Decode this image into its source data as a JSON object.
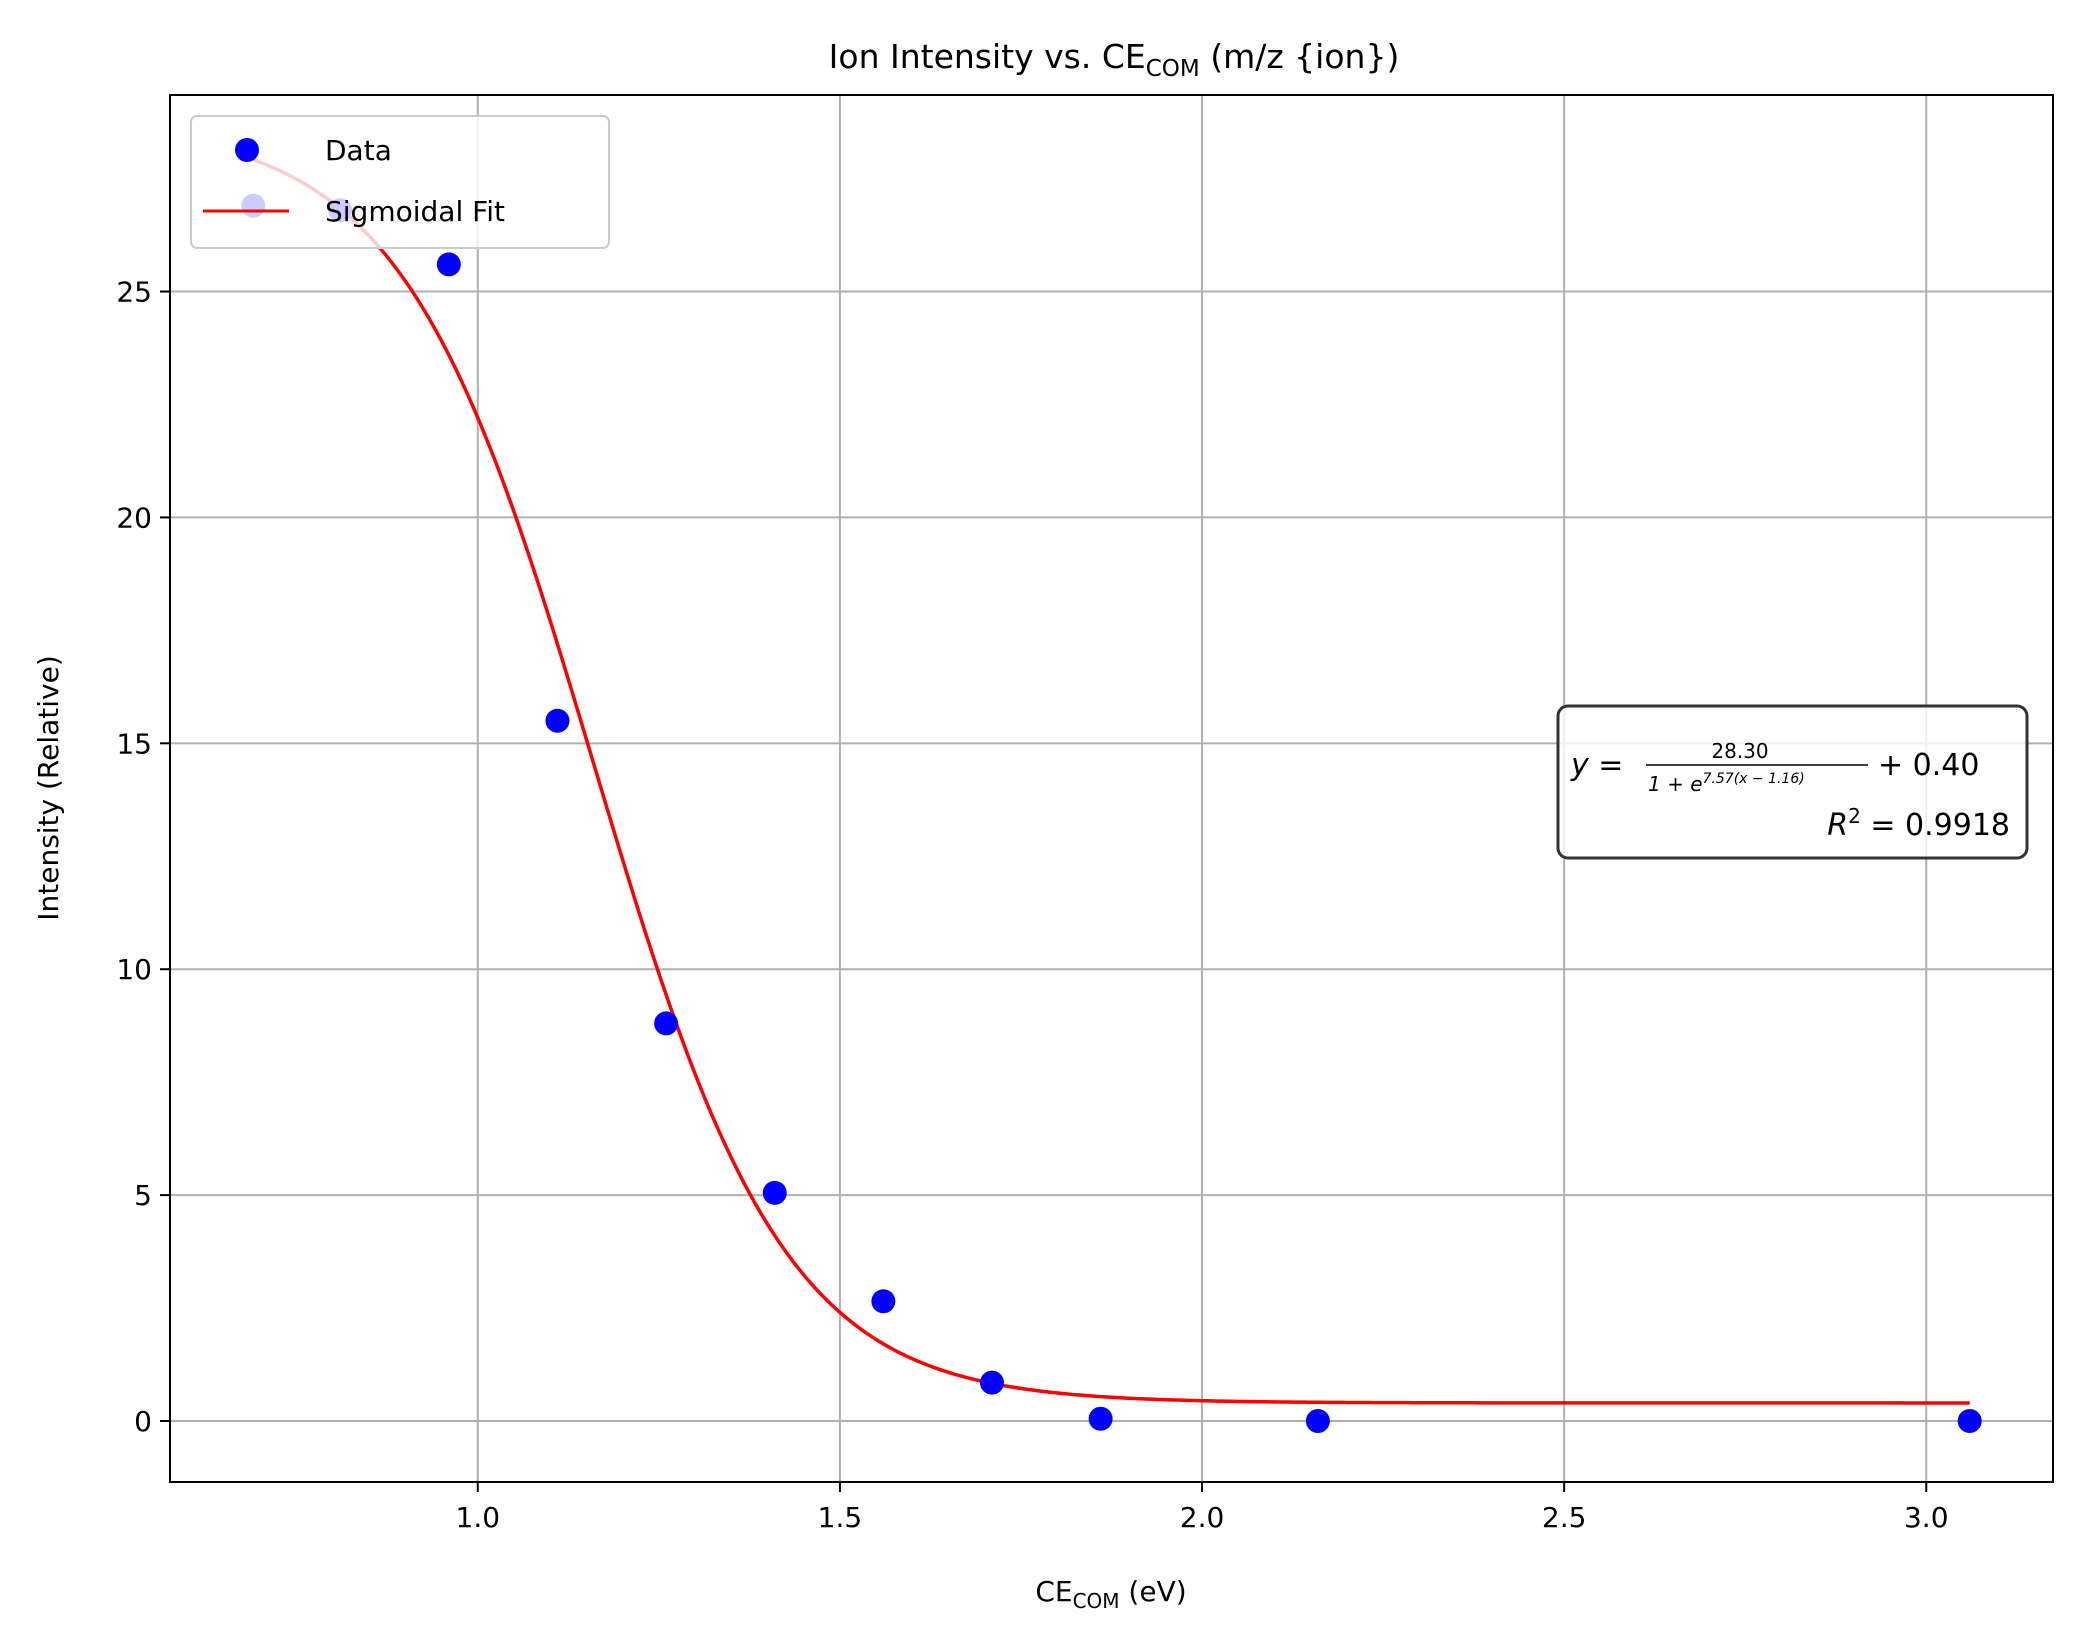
{
  "chart_data": {
    "type": "scatter",
    "title": {
      "prefix": "Ion Intensity vs. CE",
      "sub": "COM",
      "suffix": " (m/z {ion})"
    },
    "xlabel": {
      "prefix": "CE",
      "sub": "COM",
      "suffix": " (eV)"
    },
    "ylabel": "Intensity (Relative)",
    "xlim": [
      0.575,
      3.175
    ],
    "ylim": [
      -1.35,
      29.35
    ],
    "xticks": [
      1.0,
      1.5,
      2.0,
      2.5,
      3.0
    ],
    "xtick_labels": [
      "1.0",
      "1.5",
      "2.0",
      "2.5",
      "3.0"
    ],
    "yticks": [
      0,
      5,
      10,
      15,
      20,
      25
    ],
    "ytick_labels": [
      "0",
      "5",
      "10",
      "15",
      "20",
      "25"
    ],
    "grid": true,
    "legend_position": "top-left",
    "series": [
      {
        "name": "Data",
        "kind": "markers",
        "color": "#0000ff",
        "x": [
          0.69,
          0.81,
          0.96,
          1.11,
          1.26,
          1.41,
          1.56,
          1.71,
          1.86,
          2.16,
          3.06
        ],
        "y": [
          26.9,
          26.8,
          25.6,
          15.5,
          8.8,
          5.05,
          2.65,
          0.85,
          0.05,
          0.0,
          0.0
        ]
      },
      {
        "name": "Sigmoidal Fit",
        "kind": "line",
        "color": "#ff0000",
        "model": {
          "A": 28.3,
          "k": 7.57,
          "x0": 1.16,
          "c": 0.4
        },
        "x_range": [
          0.69,
          3.06
        ]
      }
    ],
    "annotation": {
      "equation": {
        "lhs": "y =",
        "numerator": "28.30",
        "denominator_base": "1 + e",
        "denominator_exp": "7.57(x − 1.16)",
        "rhs": "+ 0.40"
      },
      "r2": {
        "label": "R",
        "sup": "2",
        "value": " = 0.9918"
      }
    }
  }
}
